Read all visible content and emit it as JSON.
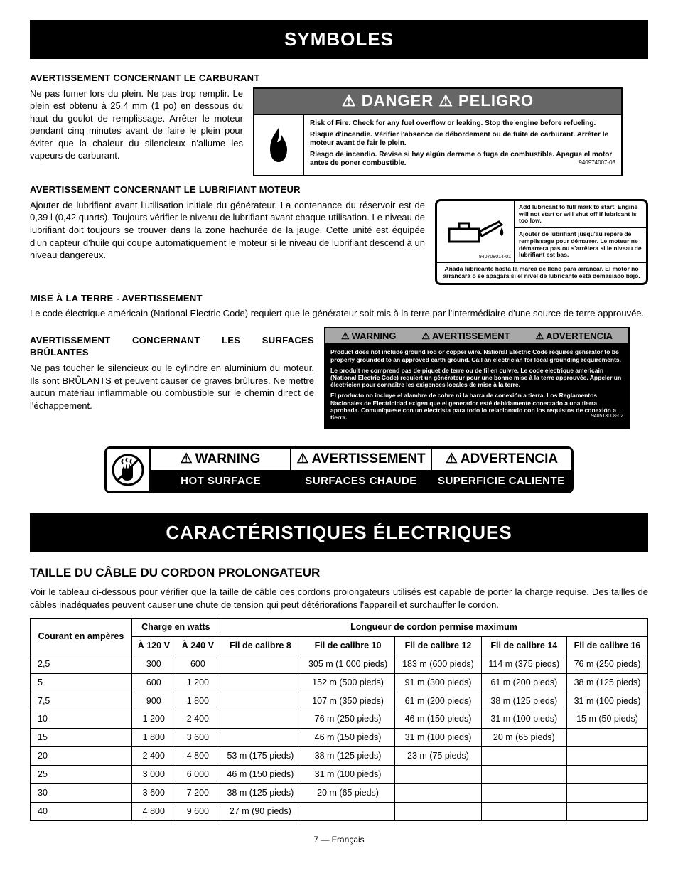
{
  "banners": {
    "symboles": "SYMBOLES",
    "caracteristiques": "CARACTÉRISTIQUES ÉLECTRIQUES"
  },
  "fuel": {
    "heading": "AVERTISSEMENT CONCERNANT LE CARBURANT",
    "para": "Ne pas fumer lors du plein. Ne pas trop remplir. Le plein est obtenu à 25,4 mm (1 po) en dessous du haut du goulot de remplissage. Arrêter le moteur pendant cinq minutes avant de faire le plein pour éviter que la chaleur du silencieux n'allume les vapeurs de carburant."
  },
  "dangerBox": {
    "header": "⚠ DANGER  ⚠ PELIGRO",
    "en": "Risk of Fire. Check for any fuel overflow or leaking. Stop the engine before refueling.",
    "fr": "Risque d'incendie. Vérifier l'absence de débordement ou de fuite de carburant. Arrêter le moteur avant de fair le plein.",
    "es": "Riesgo de incendio. Revise si hay algún derrame o fuga de combustible. Apague el motor antes de poner combustible.",
    "num": "940974007-03"
  },
  "lubricant": {
    "heading": "AVERTISSEMENT CONCERNANT LE LUBRIFIANT MOTEUR",
    "para": "Ajouter de lubrifiant avant l'utilisation initiale du générateur. La contenance du réservoir est de 0,39 l (0,42 quarts). Toujours vérifier le niveau de lubrifiant avant chaque utilisation. Le niveau de lubrifiant doit toujours se trouver dans la zone hachurée de la jauge. Cette unité est équipée d'un capteur d'huile qui coupe automatiquement le moteur si le niveau de lubrifiant descend à un niveau dangereux.",
    "box_en": "Add lubricant to full mark to start. Engine will not start or will shut off if lubricant is too low.",
    "box_fr": "Ajouter de lubrifiant jusqu'au repère de remplissage pour démarrer. Le moteur ne démarrera pas ou s'arrêtera si le niveau de lubrifiant est bas.",
    "box_es": "Añada lubricante hasta la marca de lleno para arrancar. El motor no arrancará o se apagará si el nivel de lubricante está demasiado bajo.",
    "box_num": "940708014-01"
  },
  "ground": {
    "heading": "MISE À LA TERRE - AVERTISSEMENT",
    "para": "Le code électrique américain (National Electric Code) requiert que le générateur soit mis à la terre par l'intermédiaire d'une source de terre approuvée.",
    "hdr_warning": "WARNING",
    "hdr_avert": "AVERTISSEMENT",
    "hdr_adv": "ADVERTENCIA",
    "body_en": "Product does not include ground rod or copper wire. National Electric Code requires generator to be properly grounded to an approved earth ground. Call an electrician for local grounding requirements.",
    "body_fr": "Le produit ne comprend pas de piquet de terre ou de fil en cuivre. Le code electrique americain (National Electric Code) requiert un générateur pour une bonne mise à la terre approuvée. Appeler un électricien pour connaître les exigences locales de mise à la terre.",
    "body_es": "El producto no incluye el alambre de cobre ni la barra de conexión a tierra. Los Reglamentos Nacionales de Electricidad exigen que el generador esté debidamente conectado a una tierra aprobada. Comuníquese con un electrista para todo lo relacionado con los requistos de conexión a tierra.",
    "body_num": "940513008-02"
  },
  "hotSurf": {
    "heading": "AVERTISSEMENT CONCERNANT LES SURFACES BRÛLANTES",
    "para": "Ne pas toucher le silencieux ou le cylindre en aluminium du moteur. Ils sont BRÛLANTS et peuvent causer de graves brûlures. Ne mettre aucun matériau inflammable ou combustible sur le chemin direct de l'échappement.",
    "warning": "WARNING",
    "avert": "AVERTISSEMENT",
    "adv": "ADVERTENCIA",
    "hot_en": "HOT SURFACE",
    "hot_fr": "SURFACES CHAUDE",
    "hot_es": "SUPERFICIE CALIENTE"
  },
  "elec": {
    "heading": "TAILLE DU CÂBLE DU CORDON PROLONGATEUR",
    "para": "Voir le tableau ci-dessous pour vérifier que la taille de câble des cordons prolongateurs utilisés est capable de porter la charge requise. Des tailles de câbles inadéquates peuvent causer une chute de tension qui peut détériorations l'appareil et surchauffer le cordon."
  },
  "table": {
    "col_amp": "Courant en ampères",
    "col_watts": "Charge en watts",
    "col_len": "Longueur de cordon permise maximum",
    "col_120": "À 120 V",
    "col_240": "À 240 V",
    "col_g8": "Fil de calibre 8",
    "col_g10": "Fil de calibre 10",
    "col_g12": "Fil de calibre 12",
    "col_g14": "Fil de calibre 14",
    "col_g16": "Fil de calibre 16",
    "rows": [
      {
        "a": "2,5",
        "w120": "300",
        "w240": "600",
        "g8": "",
        "g10": "305 m (1 000 pieds)",
        "g12": "183 m (600 pieds)",
        "g14": "114 m (375 pieds)",
        "g16": "76 m (250 pieds)"
      },
      {
        "a": "5",
        "w120": "600",
        "w240": "1 200",
        "g8": "",
        "g10": "152 m (500 pieds)",
        "g12": "91 m (300 pieds)",
        "g14": "61 m (200 pieds)",
        "g16": "38 m (125 pieds)"
      },
      {
        "a": "7,5",
        "w120": "900",
        "w240": "1 800",
        "g8": "",
        "g10": "107 m (350 pieds)",
        "g12": "61 m (200 pieds)",
        "g14": "38 m (125 pieds)",
        "g16": "31 m (100 pieds)"
      },
      {
        "a": "10",
        "w120": "1 200",
        "w240": "2 400",
        "g8": "",
        "g10": "76 m (250 pieds)",
        "g12": "46 m (150 pieds)",
        "g14": "31 m (100 pieds)",
        "g16": "15 m (50 pieds)"
      },
      {
        "a": "15",
        "w120": "1 800",
        "w240": "3 600",
        "g8": "",
        "g10": "46 m (150 pieds)",
        "g12": "31 m (100 pieds)",
        "g14": "20 m (65 pieds)",
        "g16": ""
      },
      {
        "a": "20",
        "w120": "2 400",
        "w240": "4 800",
        "g8": "53 m (175 pieds)",
        "g10": "38 m (125 pieds)",
        "g12": "23 m (75 pieds)",
        "g14": "",
        "g16": ""
      },
      {
        "a": "25",
        "w120": "3 000",
        "w240": "6 000",
        "g8": "46 m (150 pieds)",
        "g10": "31 m (100 pieds)",
        "g12": "",
        "g14": "",
        "g16": ""
      },
      {
        "a": "30",
        "w120": "3 600",
        "w240": "7 200",
        "g8": "38 m (125 pieds)",
        "g10": "20 m (65 pieds)",
        "g12": "",
        "g14": "",
        "g16": ""
      },
      {
        "a": "40",
        "w120": "4 800",
        "w240": "9 600",
        "g8": "27 m (90 pieds)",
        "g10": "",
        "g12": "",
        "g14": "",
        "g16": ""
      }
    ]
  },
  "footer": "7 — Français"
}
